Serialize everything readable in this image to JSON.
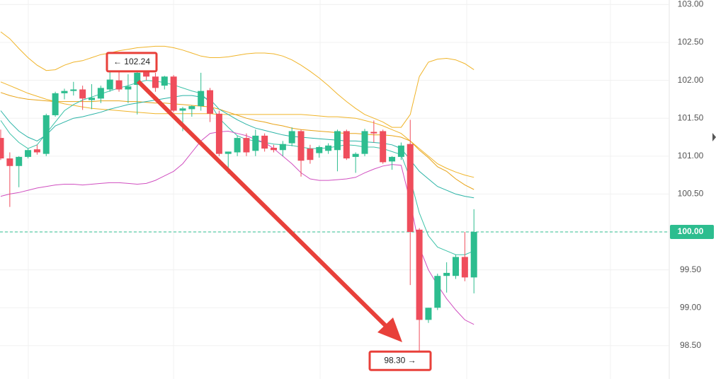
{
  "chart_data": {
    "type": "candlestick",
    "ylim": [
      98.06,
      103.06
    ],
    "yticks": [
      {
        "value": 103,
        "label": "103.00"
      },
      {
        "value": 102.5,
        "label": "102.50"
      },
      {
        "value": 102,
        "label": "102.00"
      },
      {
        "value": 101.5,
        "label": "101.50"
      },
      {
        "value": 101,
        "label": "101.00"
      },
      {
        "value": 100.5,
        "label": "100.50"
      },
      {
        "value": 100,
        "label": "100.00"
      },
      {
        "value": 99.5,
        "label": "99.50"
      },
      {
        "value": 99,
        "label": "99.00"
      },
      {
        "value": 98.5,
        "label": "98.50"
      }
    ],
    "grid": true,
    "up_color": "#2dbd8f",
    "down_color": "#ef4d5c",
    "open": [
      101.24,
      100.97,
      100.87,
      100.99,
      101.09,
      101.03,
      101.54,
      101.83,
      101.86,
      101.88,
      101.74,
      101.76,
      101.88,
      102.0,
      101.88,
      101.94,
      102.12,
      102.05,
      101.93,
      102.05,
      101.6,
      101.62,
      101.66,
      101.87,
      101.56,
      101.03,
      101.05,
      101.24,
      101.07,
      101.27,
      101.11,
      101.08,
      101.17,
      101.33,
      101.1,
      101.04,
      101.07,
      101.08,
      101.33,
      100.99,
      101.03,
      101.32,
      101.33,
      100.93,
      100.99,
      101.16,
      100.03,
      98.84,
      99.0,
      99.42,
      99.42,
      99.67,
      99.4
    ],
    "high": [
      101.35,
      101.05,
      101.0,
      101.1,
      101.15,
      101.56,
      101.85,
      101.89,
      101.98,
      101.93,
      101.95,
      101.93,
      102.12,
      102.12,
      102.08,
      102.24,
      102.2,
      102.1,
      102.06,
      102.07,
      101.65,
      101.67,
      102.1,
      101.9,
      101.6,
      101.06,
      101.27,
      101.3,
      101.35,
      101.3,
      101.15,
      101.2,
      101.38,
      101.35,
      101.15,
      101.14,
      101.17,
      101.35,
      101.35,
      101.05,
      101.36,
      101.47,
      101.35,
      101.0,
      101.18,
      101.48,
      100.05,
      99.0,
      99.45,
      99.6,
      99.7,
      100.0,
      100.3
    ],
    "low": [
      100.95,
      100.33,
      100.59,
      100.97,
      101.02,
      101.0,
      101.52,
      101.75,
      101.8,
      101.61,
      101.62,
      101.7,
      101.85,
      101.85,
      101.7,
      101.55,
      102.0,
      101.85,
      101.88,
      101.58,
      101.33,
      101.52,
      101.6,
      101.45,
      101.0,
      100.77,
      101.0,
      101.0,
      101.0,
      101.06,
      101.05,
      101.0,
      101.13,
      100.73,
      100.9,
      100.98,
      101.03,
      100.8,
      100.95,
      100.78,
      101.0,
      101.18,
      100.9,
      100.82,
      100.95,
      99.3,
      98.3,
      98.8,
      98.97,
      99.2,
      99.38,
      99.35,
      99.19
    ],
    "close": [
      100.97,
      100.87,
      100.99,
      101.08,
      101.05,
      101.54,
      101.83,
      101.86,
      101.88,
      101.76,
      101.77,
      101.9,
      102.01,
      101.88,
      101.92,
      102.1,
      102.05,
      101.9,
      102.05,
      101.6,
      101.63,
      101.66,
      101.86,
      101.56,
      101.03,
      101.06,
      101.24,
      101.05,
      101.27,
      101.1,
      101.08,
      101.16,
      101.33,
      100.94,
      100.95,
      101.12,
      101.14,
      101.33,
      100.97,
      101.03,
      101.33,
      101.3,
      100.92,
      100.99,
      101.14,
      100.0,
      98.84,
      99.0,
      99.42,
      99.46,
      99.67,
      99.4,
      100.0
    ],
    "series": [
      {
        "color": "#f0b429",
        "values": [
          102.64,
          102.55,
          102.42,
          102.3,
          102.2,
          102.13,
          102.14,
          102.2,
          102.24,
          102.26,
          102.3,
          102.34,
          102.36,
          102.39,
          102.41,
          102.43,
          102.44,
          102.45,
          102.45,
          102.43,
          102.4,
          102.36,
          102.32,
          102.3,
          102.3,
          102.31,
          102.33,
          102.35,
          102.36,
          102.36,
          102.35,
          102.32,
          102.27,
          102.2,
          102.12,
          102.03,
          101.93,
          101.82,
          101.72,
          101.63,
          101.55,
          101.5,
          101.45,
          101.38,
          101.38,
          101.55,
          102.05,
          102.24,
          102.28,
          102.29,
          102.27,
          102.22,
          102.14
        ]
      },
      {
        "color": "#f0b429",
        "values": [
          101.98,
          101.93,
          101.88,
          101.83,
          101.79,
          101.75,
          101.72,
          101.69,
          101.67,
          101.65,
          101.63,
          101.62,
          101.61,
          101.6,
          101.59,
          101.58,
          101.57,
          101.56,
          101.56,
          101.56,
          101.56,
          101.56,
          101.56,
          101.56,
          101.55,
          101.55,
          101.55,
          101.55,
          101.55,
          101.55,
          101.55,
          101.55,
          101.55,
          101.55,
          101.54,
          101.53,
          101.52,
          101.52,
          101.51,
          101.5,
          101.47,
          101.44,
          101.4,
          101.35,
          101.3,
          101.2,
          101.1,
          101.0,
          100.9,
          100.84,
          100.79,
          100.75,
          100.72
        ]
      },
      {
        "color": "#e8a317",
        "values": [
          101.84,
          101.8,
          101.77,
          101.75,
          101.74,
          101.73,
          101.72,
          101.72,
          101.72,
          101.72,
          101.72,
          101.73,
          101.73,
          101.73,
          101.72,
          101.72,
          101.71,
          101.7,
          101.7,
          101.69,
          101.68,
          101.67,
          101.66,
          101.65,
          101.62,
          101.58,
          101.54,
          101.5,
          101.47,
          101.45,
          101.42,
          101.4,
          101.37,
          101.35,
          101.34,
          101.33,
          101.32,
          101.31,
          101.3,
          101.3,
          101.29,
          101.28,
          101.28,
          101.27,
          101.25,
          101.2,
          101.08,
          100.98,
          100.86,
          100.8,
          100.7,
          100.62,
          100.56
        ]
      },
      {
        "color": "#3cc2a8",
        "values": [
          101.47,
          101.3,
          101.18,
          101.1,
          101.15,
          101.3,
          101.45,
          101.6,
          101.68,
          101.74,
          101.78,
          101.82,
          101.86,
          101.9,
          101.93,
          101.97,
          102.0,
          101.99,
          101.97,
          101.94,
          101.9,
          101.86,
          101.83,
          101.7,
          101.5,
          101.38,
          101.27,
          101.22,
          101.2,
          101.18,
          101.16,
          101.15,
          101.14,
          101.12,
          101.1,
          101.1,
          101.11,
          101.13,
          101.15,
          101.14,
          101.12,
          101.12,
          101.1,
          101.06,
          101.02,
          100.7,
          100.25,
          99.95,
          99.8,
          99.75,
          99.7,
          99.7,
          99.75
        ]
      },
      {
        "color": "#2ab3a6",
        "values": [
          101.6,
          101.45,
          101.33,
          101.25,
          101.2,
          101.28,
          101.4,
          101.45,
          101.5,
          101.52,
          101.55,
          101.58,
          101.62,
          101.65,
          101.68,
          101.7,
          101.72,
          101.74,
          101.76,
          101.78,
          101.8,
          101.8,
          101.78,
          101.75,
          101.62,
          101.55,
          101.48,
          101.42,
          101.37,
          101.34,
          101.31,
          101.28,
          101.26,
          101.25,
          101.24,
          101.23,
          101.22,
          101.21,
          101.2,
          101.2,
          101.19,
          101.18,
          101.17,
          101.15,
          101.1,
          100.95,
          100.8,
          100.7,
          100.6,
          100.55,
          100.5,
          100.47,
          100.45
        ]
      },
      {
        "color": "#d04fc0",
        "values": [
          100.47,
          100.5,
          100.52,
          100.55,
          100.58,
          100.6,
          100.62,
          100.63,
          100.63,
          100.62,
          100.63,
          100.64,
          100.65,
          100.65,
          100.64,
          100.63,
          100.64,
          100.68,
          100.74,
          100.8,
          100.9,
          101.05,
          101.2,
          101.3,
          101.32,
          101.33,
          101.3,
          101.27,
          101.22,
          101.18,
          101.1,
          101.0,
          100.9,
          100.78,
          100.7,
          100.68,
          100.68,
          100.69,
          100.7,
          100.72,
          100.78,
          100.83,
          100.87,
          100.89,
          100.88,
          100.4,
          99.8,
          99.5,
          99.3,
          99.12,
          98.97,
          98.84,
          98.78
        ]
      }
    ],
    "last_price": {
      "value": 100,
      "label": "100.00",
      "color": "#2dbd8f"
    },
    "annotations": [
      {
        "value": 102.24,
        "label": "← 102.24"
      },
      {
        "value": 98.3,
        "label": "98.30 →"
      }
    ]
  }
}
